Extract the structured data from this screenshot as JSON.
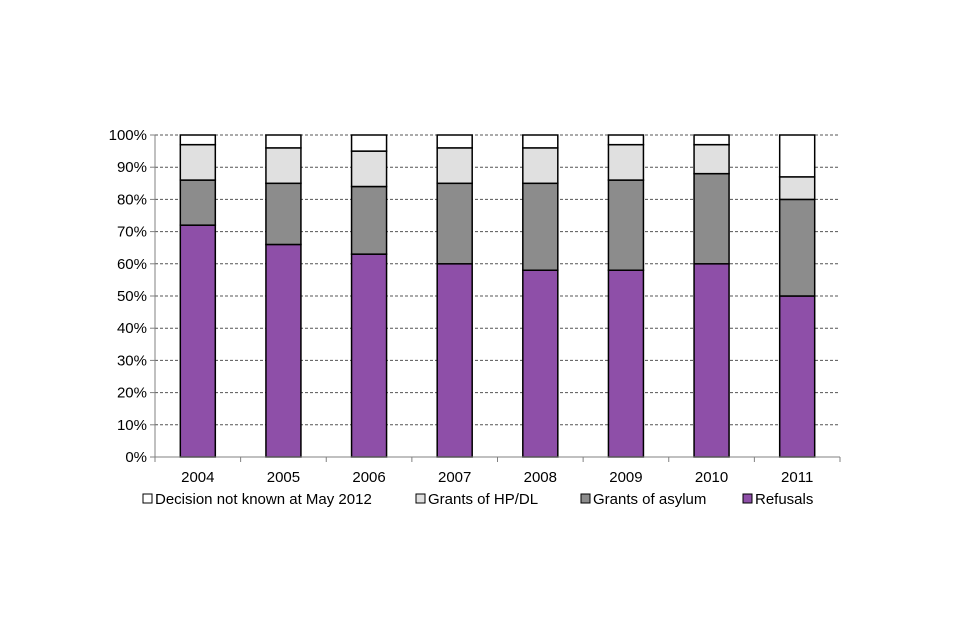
{
  "chart_data": {
    "type": "bar",
    "stacked": true,
    "normalized": true,
    "title": "",
    "xlabel": "",
    "ylabel": "",
    "ylim": [
      0,
      100
    ],
    "y_ticks": [
      "0%",
      "10%",
      "20%",
      "30%",
      "40%",
      "50%",
      "60%",
      "70%",
      "80%",
      "90%",
      "100%"
    ],
    "grid": true,
    "legend_position": "bottom",
    "categories": [
      "2004",
      "2005",
      "2006",
      "2007",
      "2008",
      "2009",
      "2010",
      "2011"
    ],
    "series": [
      {
        "name": "Refusals",
        "color": "#8e4fa8",
        "values": [
          72,
          66,
          63,
          60,
          58,
          58,
          60,
          50
        ]
      },
      {
        "name": "Grants of asylum",
        "color": "#8c8c8c",
        "values": [
          14,
          19,
          21,
          25,
          27,
          28,
          28,
          30
        ]
      },
      {
        "name": "Grants of HP/DL",
        "color": "#e0e0e0",
        "values": [
          11,
          11,
          11,
          11,
          11,
          11,
          9,
          7
        ]
      },
      {
        "name": "Decision not known at May 2012",
        "color": "#ffffff",
        "values": [
          3,
          4,
          5,
          4,
          4,
          3,
          3,
          13
        ]
      }
    ],
    "legend_order": [
      "Decision not known at May 2012",
      "Grants of HP/DL",
      "Grants of asylum",
      "Refusals"
    ]
  }
}
